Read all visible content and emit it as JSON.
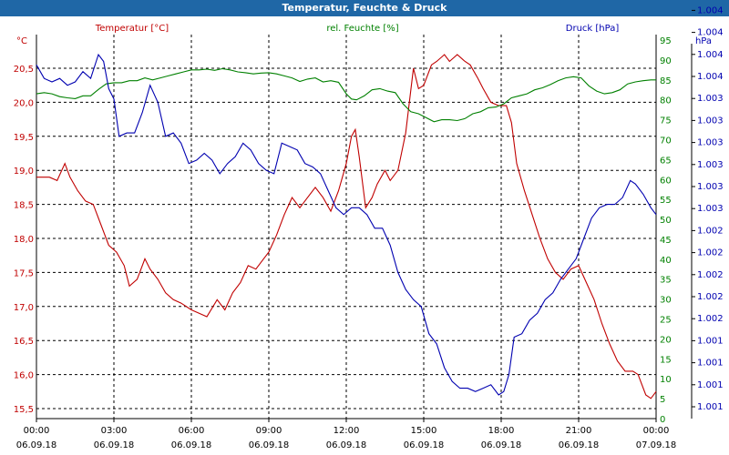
{
  "window": {
    "title": "Temperatur, Feuchte & Druck"
  },
  "chart_data": {
    "type": "line",
    "title": "Temperatur, Feuchte & Druck",
    "grid": true,
    "colors": {
      "temperature": "#c00000",
      "humidity": "#008000",
      "pressure": "#0000b0"
    },
    "x_ticks": [
      {
        "time": "00:00",
        "date": "06.09.18"
      },
      {
        "time": "03:00",
        "date": "06.09.18"
      },
      {
        "time": "06:00",
        "date": "06.09.18"
      },
      {
        "time": "09:00",
        "date": "06.09.18"
      },
      {
        "time": "12:00",
        "date": "06.09.18"
      },
      {
        "time": "15:00",
        "date": "06.09.18"
      },
      {
        "time": "18:00",
        "date": "06.09.18"
      },
      {
        "time": "21:00",
        "date": "06.09.18"
      },
      {
        "time": "00:00",
        "date": "07.09.18"
      }
    ],
    "x_unit": "hours since 06.09.18 00:00",
    "xlim": [
      0,
      24
    ],
    "axes": {
      "temperature": {
        "label": "Temperatur [°C]",
        "unit": "°C",
        "ylim": [
          15.5,
          20.5
        ],
        "ticks": [
          "15,5",
          "16,0",
          "16,5",
          "17,0",
          "17,5",
          "18,0",
          "18,5",
          "19,0",
          "19,5",
          "20,0",
          "20,5"
        ]
      },
      "humidity": {
        "label": "rel. Feuchte [%]",
        "unit": "%",
        "ylim": [
          0,
          95
        ],
        "ticks": [
          "0",
          "5",
          "10",
          "15",
          "20",
          "25",
          "30",
          "35",
          "40",
          "45",
          "50",
          "55",
          "60",
          "65",
          "70",
          "75",
          "80",
          "85",
          "90",
          "95"
        ]
      },
      "pressure": {
        "label": "Druck [hPa]",
        "unit": "hPa",
        "ticks": [
          "1.001",
          "1.001",
          "1.001",
          "1.001",
          "1.002",
          "1.002",
          "1.002",
          "1.002",
          "1.002",
          "1.003",
          "1.003",
          "1.003",
          "1.003",
          "1.003",
          "1.003",
          "1.004",
          "1.004",
          "1.004",
          "1.004"
        ]
      }
    },
    "series": [
      {
        "name": "Temperatur [°C]",
        "axis": "temperature",
        "points": [
          [
            0.0,
            18.9
          ],
          [
            0.5,
            18.9
          ],
          [
            0.8,
            18.85
          ],
          [
            1.1,
            19.1
          ],
          [
            1.3,
            18.9
          ],
          [
            1.6,
            18.7
          ],
          [
            1.9,
            18.55
          ],
          [
            2.2,
            18.5
          ],
          [
            2.5,
            18.2
          ],
          [
            2.8,
            17.9
          ],
          [
            3.1,
            17.8
          ],
          [
            3.4,
            17.6
          ],
          [
            3.6,
            17.3
          ],
          [
            3.9,
            17.4
          ],
          [
            4.2,
            17.7
          ],
          [
            4.4,
            17.55
          ],
          [
            4.7,
            17.4
          ],
          [
            5.0,
            17.2
          ],
          [
            5.3,
            17.1
          ],
          [
            5.6,
            17.05
          ],
          [
            6.0,
            16.95
          ],
          [
            6.3,
            16.9
          ],
          [
            6.6,
            16.85
          ],
          [
            7.0,
            17.1
          ],
          [
            7.3,
            16.95
          ],
          [
            7.6,
            17.2
          ],
          [
            7.9,
            17.35
          ],
          [
            8.2,
            17.6
          ],
          [
            8.5,
            17.55
          ],
          [
            8.8,
            17.7
          ],
          [
            9.0,
            17.8
          ],
          [
            9.3,
            18.05
          ],
          [
            9.6,
            18.35
          ],
          [
            9.9,
            18.6
          ],
          [
            10.2,
            18.45
          ],
          [
            10.5,
            18.6
          ],
          [
            10.8,
            18.75
          ],
          [
            11.1,
            18.6
          ],
          [
            11.4,
            18.4
          ],
          [
            11.7,
            18.7
          ],
          [
            12.0,
            19.1
          ],
          [
            12.2,
            19.5
          ],
          [
            12.35,
            19.6
          ],
          [
            12.5,
            19.2
          ],
          [
            12.75,
            18.45
          ],
          [
            13.0,
            18.6
          ],
          [
            13.2,
            18.8
          ],
          [
            13.5,
            19.0
          ],
          [
            13.7,
            18.85
          ],
          [
            14.0,
            19.0
          ],
          [
            14.3,
            19.55
          ],
          [
            14.6,
            20.5
          ],
          [
            14.8,
            20.2
          ],
          [
            15.0,
            20.25
          ],
          [
            15.3,
            20.55
          ],
          [
            15.5,
            20.6
          ],
          [
            15.8,
            20.7
          ],
          [
            16.0,
            20.6
          ],
          [
            16.3,
            20.7
          ],
          [
            16.6,
            20.6
          ],
          [
            16.8,
            20.55
          ],
          [
            17.1,
            20.35
          ],
          [
            17.3,
            20.2
          ],
          [
            17.6,
            20.0
          ],
          [
            17.9,
            19.95
          ],
          [
            18.2,
            19.95
          ],
          [
            18.4,
            19.7
          ],
          [
            18.6,
            19.1
          ],
          [
            18.9,
            18.7
          ],
          [
            19.2,
            18.35
          ],
          [
            19.5,
            18.0
          ],
          [
            19.8,
            17.7
          ],
          [
            20.1,
            17.5
          ],
          [
            20.4,
            17.4
          ],
          [
            20.7,
            17.55
          ],
          [
            21.0,
            17.6
          ],
          [
            21.3,
            17.35
          ],
          [
            21.6,
            17.1
          ],
          [
            21.9,
            16.75
          ],
          [
            22.2,
            16.45
          ],
          [
            22.5,
            16.2
          ],
          [
            22.8,
            16.05
          ],
          [
            23.1,
            16.05
          ],
          [
            23.3,
            16.0
          ],
          [
            23.6,
            15.7
          ],
          [
            23.8,
            15.65
          ],
          [
            24.0,
            15.75
          ]
        ]
      },
      {
        "name": "rel. Feuchte [%]",
        "axis": "humidity",
        "points": [
          [
            0.0,
            81.5
          ],
          [
            0.3,
            81.8
          ],
          [
            0.6,
            81.5
          ],
          [
            0.9,
            80.8
          ],
          [
            1.2,
            80.5
          ],
          [
            1.5,
            80.3
          ],
          [
            1.8,
            81.0
          ],
          [
            2.1,
            81.0
          ],
          [
            2.4,
            82.6
          ],
          [
            2.7,
            84.0
          ],
          [
            3.0,
            84.3
          ],
          [
            3.3,
            84.3
          ],
          [
            3.6,
            84.8
          ],
          [
            3.9,
            84.8
          ],
          [
            4.2,
            85.5
          ],
          [
            4.5,
            85.0
          ],
          [
            4.8,
            85.5
          ],
          [
            5.1,
            86.0
          ],
          [
            5.4,
            86.5
          ],
          [
            5.7,
            87.0
          ],
          [
            6.0,
            87.5
          ],
          [
            6.3,
            87.5
          ],
          [
            6.6,
            87.7
          ],
          [
            6.9,
            87.4
          ],
          [
            7.2,
            87.8
          ],
          [
            7.5,
            87.5
          ],
          [
            7.8,
            87.0
          ],
          [
            8.1,
            86.8
          ],
          [
            8.4,
            86.5
          ],
          [
            8.7,
            86.7
          ],
          [
            9.0,
            86.8
          ],
          [
            9.3,
            86.5
          ],
          [
            9.6,
            86.0
          ],
          [
            9.9,
            85.5
          ],
          [
            10.2,
            84.6
          ],
          [
            10.5,
            85.2
          ],
          [
            10.8,
            85.5
          ],
          [
            11.1,
            84.5
          ],
          [
            11.4,
            84.8
          ],
          [
            11.7,
            84.4
          ],
          [
            12.0,
            81.5
          ],
          [
            12.2,
            80.2
          ],
          [
            12.4,
            80.0
          ],
          [
            12.7,
            81.0
          ],
          [
            13.0,
            82.5
          ],
          [
            13.3,
            82.8
          ],
          [
            13.6,
            82.2
          ],
          [
            13.9,
            81.8
          ],
          [
            14.2,
            79.0
          ],
          [
            14.5,
            77.0
          ],
          [
            14.8,
            76.5
          ],
          [
            15.1,
            75.5
          ],
          [
            15.4,
            74.5
          ],
          [
            15.7,
            75.0
          ],
          [
            16.0,
            75.0
          ],
          [
            16.3,
            74.8
          ],
          [
            16.6,
            75.3
          ],
          [
            16.9,
            76.5
          ],
          [
            17.2,
            77.0
          ],
          [
            17.5,
            78.0
          ],
          [
            17.8,
            78.2
          ],
          [
            18.1,
            79.0
          ],
          [
            18.4,
            80.5
          ],
          [
            18.7,
            81.0
          ],
          [
            19.0,
            81.5
          ],
          [
            19.3,
            82.5
          ],
          [
            19.6,
            83.0
          ],
          [
            19.9,
            83.8
          ],
          [
            20.2,
            84.8
          ],
          [
            20.5,
            85.5
          ],
          [
            20.8,
            85.8
          ],
          [
            21.1,
            85.5
          ],
          [
            21.4,
            83.5
          ],
          [
            21.7,
            82.2
          ],
          [
            22.0,
            81.5
          ],
          [
            22.3,
            81.8
          ],
          [
            22.6,
            82.5
          ],
          [
            22.9,
            84.0
          ],
          [
            23.2,
            84.5
          ],
          [
            23.5,
            84.8
          ],
          [
            23.8,
            85.0
          ],
          [
            24.0,
            85.0
          ]
        ]
      },
      {
        "name": "Druck [hPa]",
        "axis": "pressure",
        "note": "values as read on the right-hand hPa axis position (axis prints only 3 decimals)",
        "points": [
          [
            0.0,
            20.55
          ],
          [
            0.3,
            20.35
          ],
          [
            0.6,
            20.3
          ],
          [
            0.9,
            20.35
          ],
          [
            1.2,
            20.25
          ],
          [
            1.5,
            20.3
          ],
          [
            1.8,
            20.45
          ],
          [
            2.1,
            20.35
          ],
          [
            2.4,
            20.7
          ],
          [
            2.6,
            20.6
          ],
          [
            2.8,
            20.2
          ],
          [
            3.0,
            20.05
          ],
          [
            3.2,
            19.5
          ],
          [
            3.5,
            19.55
          ],
          [
            3.8,
            19.55
          ],
          [
            4.1,
            19.85
          ],
          [
            4.4,
            20.25
          ],
          [
            4.7,
            20.0
          ],
          [
            5.0,
            19.5
          ],
          [
            5.3,
            19.55
          ],
          [
            5.6,
            19.4
          ],
          [
            5.9,
            19.1
          ],
          [
            6.2,
            19.15
          ],
          [
            6.5,
            19.25
          ],
          [
            6.8,
            19.15
          ],
          [
            7.1,
            18.95
          ],
          [
            7.4,
            19.1
          ],
          [
            7.7,
            19.2
          ],
          [
            8.0,
            19.4
          ],
          [
            8.3,
            19.3
          ],
          [
            8.6,
            19.1
          ],
          [
            8.9,
            19.0
          ],
          [
            9.2,
            18.95
          ],
          [
            9.5,
            19.4
          ],
          [
            9.8,
            19.35
          ],
          [
            10.1,
            19.3
          ],
          [
            10.4,
            19.1
          ],
          [
            10.7,
            19.05
          ],
          [
            11.0,
            18.95
          ],
          [
            11.3,
            18.7
          ],
          [
            11.6,
            18.45
          ],
          [
            11.9,
            18.35
          ],
          [
            12.2,
            18.45
          ],
          [
            12.5,
            18.45
          ],
          [
            12.8,
            18.35
          ],
          [
            13.1,
            18.15
          ],
          [
            13.4,
            18.15
          ],
          [
            13.7,
            17.9
          ],
          [
            14.0,
            17.5
          ],
          [
            14.3,
            17.25
          ],
          [
            14.6,
            17.1
          ],
          [
            14.9,
            17.0
          ],
          [
            15.2,
            16.6
          ],
          [
            15.5,
            16.45
          ],
          [
            15.8,
            16.1
          ],
          [
            16.1,
            15.9
          ],
          [
            16.4,
            15.8
          ],
          [
            16.7,
            15.8
          ],
          [
            17.0,
            15.75
          ],
          [
            17.3,
            15.8
          ],
          [
            17.6,
            15.85
          ],
          [
            17.9,
            15.7
          ],
          [
            18.1,
            15.75
          ],
          [
            18.3,
            16.0
          ],
          [
            18.5,
            16.55
          ],
          [
            18.8,
            16.6
          ],
          [
            19.1,
            16.8
          ],
          [
            19.4,
            16.9
          ],
          [
            19.7,
            17.1
          ],
          [
            20.0,
            17.2
          ],
          [
            20.3,
            17.4
          ],
          [
            20.6,
            17.55
          ],
          [
            20.9,
            17.7
          ],
          [
            21.2,
            18.0
          ],
          [
            21.5,
            18.3
          ],
          [
            21.8,
            18.45
          ],
          [
            22.1,
            18.5
          ],
          [
            22.4,
            18.5
          ],
          [
            22.7,
            18.6
          ],
          [
            23.0,
            18.85
          ],
          [
            23.2,
            18.8
          ],
          [
            23.5,
            18.65
          ],
          [
            23.8,
            18.45
          ],
          [
            24.0,
            18.35
          ]
        ]
      }
    ]
  }
}
